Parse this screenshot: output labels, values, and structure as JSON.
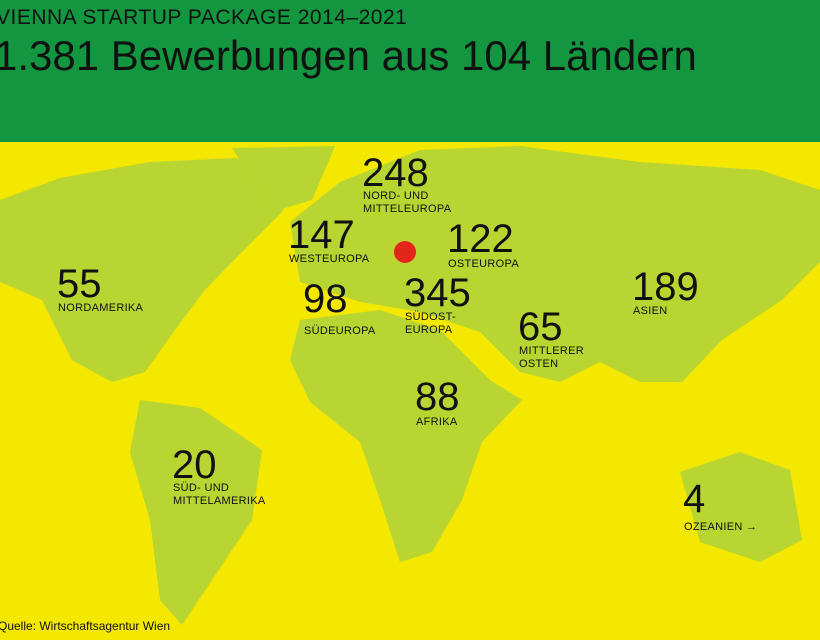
{
  "header": {
    "kicker": "VIENNA STARTUP PACKAGE 2014–2021",
    "title": "1.381 Bewerbungen aus 104 Ländern"
  },
  "regions": [
    {
      "value": 248,
      "label_lines": [
        "NORD- UND",
        "MITTELEUROPA"
      ]
    },
    {
      "value": 147,
      "label_lines": [
        "WESTEUROPA"
      ]
    },
    {
      "value": 122,
      "label_lines": [
        "OSTEUROPA"
      ]
    },
    {
      "value": 55,
      "label_lines": [
        "NORDAMERIKA"
      ]
    },
    {
      "value": 98,
      "label_lines": [
        "SÜDEUROPA"
      ]
    },
    {
      "value": 345,
      "label_lines": [
        "SÜDOST-",
        "EUROPA"
      ]
    },
    {
      "value": 189,
      "label_lines": [
        "ASIEN"
      ]
    },
    {
      "value": 65,
      "label_lines": [
        "MITTLERER",
        "OSTEN"
      ]
    },
    {
      "value": 88,
      "label_lines": [
        "AFRIKA"
      ]
    },
    {
      "value": 20,
      "label_lines": [
        "SÜD- UND",
        "MITTELAMERIKA"
      ]
    },
    {
      "value": 4,
      "label_lines": [
        "OZEANIEN →"
      ]
    }
  ],
  "source": "Quelle: Wirtschaftsagentur Wien"
}
